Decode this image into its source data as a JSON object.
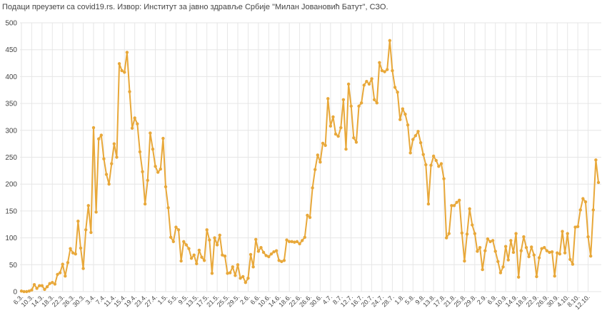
{
  "chart_data": {
    "type": "line",
    "title": "Подаци преузети са covid19.rs. Извор: Институт за јавно здравље Србије \"Милан Јовановић Батут\", СЗО.",
    "color": "#e8a83a",
    "grid": true,
    "ylim": [
      0,
      500
    ],
    "yticks": [
      0,
      50,
      100,
      150,
      200,
      250,
      300,
      350,
      400,
      450,
      500
    ],
    "categories": [
      "6.3.",
      null,
      null,
      null,
      "10.3.",
      null,
      null,
      null,
      "14.3.",
      null,
      null,
      null,
      "18.3.",
      null,
      null,
      null,
      "22.3.",
      null,
      null,
      null,
      "26.3.",
      null,
      null,
      null,
      "30.3.",
      null,
      null,
      null,
      "3.4.",
      null,
      null,
      null,
      "7.4.",
      null,
      null,
      null,
      "11.4.",
      null,
      null,
      null,
      "15.4.",
      null,
      null,
      null,
      "19.4.",
      null,
      null,
      null,
      "23.4.",
      null,
      null,
      null,
      "27.4.",
      null,
      null,
      null,
      "1.5.",
      null,
      null,
      null,
      "5.5.",
      null,
      null,
      null,
      "9.5.",
      null,
      null,
      null,
      "13.5.",
      null,
      null,
      null,
      "17.5.",
      null,
      null,
      null,
      "21.5.",
      null,
      null,
      null,
      "25.5.",
      null,
      null,
      null,
      "29.5.",
      null,
      null,
      null,
      "2.6.",
      null,
      null,
      null,
      "6.6.",
      null,
      null,
      null,
      "10.6.",
      null,
      null,
      null,
      "14.6.",
      null,
      null,
      null,
      "18.6.",
      null,
      null,
      null,
      "22.6.",
      null,
      null,
      null,
      "26.6.",
      null,
      null,
      null,
      "30.6.",
      null,
      null,
      null,
      "4.7.",
      null,
      null,
      null,
      "8.7.",
      null,
      null,
      null,
      "12.7.",
      null,
      null,
      null,
      "16.7.",
      null,
      null,
      null,
      "20.7.",
      null,
      null,
      null,
      "24.7.",
      null,
      null,
      null,
      "28.7.",
      null,
      null,
      null,
      "1.8.",
      null,
      null,
      null,
      "5.8.",
      null,
      null,
      null,
      "9.8.",
      null,
      null,
      null,
      "13.8.",
      null,
      null,
      null,
      "17.8.",
      null,
      null,
      null,
      "21.8.",
      null,
      null,
      null,
      "25.8.",
      null,
      null,
      null,
      "29.8.",
      null,
      null,
      null,
      "2.9.",
      null,
      null,
      null,
      "6.9.",
      null,
      null,
      null,
      "10.9.",
      null,
      null,
      null,
      "14.9.",
      null,
      null,
      null,
      "18.9.",
      null,
      null,
      null,
      "22.9.",
      null,
      null,
      null,
      "26.9.",
      null,
      null,
      null,
      "30.9.",
      null,
      null,
      null,
      "4.10.",
      null,
      null,
      null,
      "8.10.",
      null,
      null,
      null,
      "12.10.",
      null,
      null,
      null,
      null
    ],
    "values": [
      1,
      0,
      0,
      1,
      3,
      13,
      6,
      11,
      11,
      4,
      9,
      15,
      17,
      14,
      32,
      35,
      51,
      29,
      54,
      80,
      72,
      70,
      131,
      81,
      43,
      115,
      160,
      110,
      305,
      148,
      284,
      291,
      247,
      218,
      200,
      238,
      275,
      250,
      424,
      411,
      408,
      445,
      372,
      304,
      323,
      312,
      260,
      223,
      163,
      207,
      295,
      265,
      233,
      222,
      228,
      285,
      195,
      156,
      101,
      93,
      120,
      115,
      57,
      93,
      87,
      80,
      62,
      68,
      52,
      77,
      64,
      58,
      115,
      96,
      34,
      100,
      87,
      105,
      68,
      66,
      34,
      35,
      46,
      30,
      50,
      25,
      28,
      17,
      25,
      69,
      46,
      97,
      75,
      82,
      73,
      67,
      65,
      70,
      74,
      76,
      58,
      56,
      58,
      96,
      93,
      93,
      92,
      93,
      89,
      95,
      101,
      142,
      138,
      193,
      227,
      254,
      241,
      276,
      272,
      359,
      308,
      325,
      293,
      289,
      305,
      357,
      265,
      386,
      345,
      286,
      278,
      345,
      351,
      384,
      391,
      386,
      396,
      357,
      351,
      426,
      411,
      409,
      413,
      467,
      411,
      380,
      371,
      320,
      340,
      330,
      310,
      258,
      283,
      290,
      298,
      277,
      255,
      236,
      163,
      235,
      252,
      244,
      233,
      238,
      210,
      100,
      108,
      160,
      160,
      166,
      170,
      109,
      57,
      107,
      154,
      124,
      108,
      75,
      82,
      41,
      76,
      98,
      93,
      95,
      75,
      56,
      35,
      46,
      84,
      59,
      95,
      73,
      108,
      27,
      76,
      102,
      82,
      65,
      83,
      68,
      28,
      63,
      80,
      82,
      76,
      73,
      74,
      29,
      72,
      70,
      112,
      72,
      108,
      60,
      51,
      120,
      121,
      152,
      173,
      167,
      102,
      66,
      152,
      245,
      203
    ]
  }
}
